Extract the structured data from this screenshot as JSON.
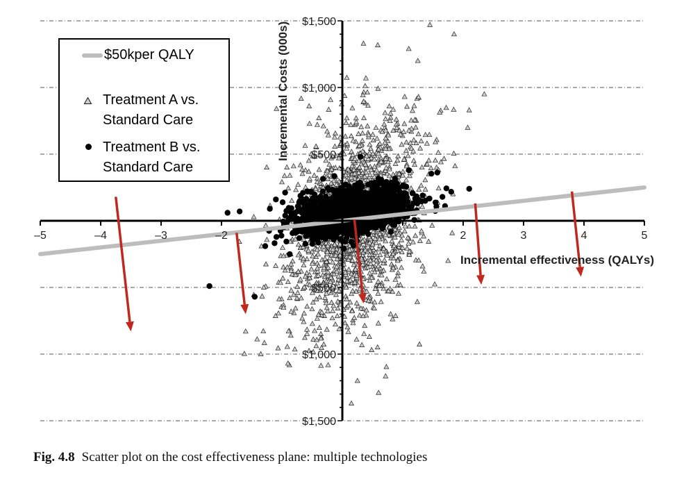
{
  "caption": {
    "label": "Fig. 4.8",
    "text": "Scatter plot on the cost effectiveness plane: multiple technologies"
  },
  "legend": {
    "threshold": "$50kper QALY",
    "series_a_line1": "Treatment A vs.",
    "series_a_line2": "Standard Care",
    "series_b_line1": "Treatment B vs.",
    "series_b_line2": "Standard Care"
  },
  "colors": {
    "threshold_line": "#bdbdbd",
    "arrows": "#c0281e",
    "triangles_fill": "#cfcfcf",
    "dots": "#000000"
  },
  "chart_data": {
    "type": "scatter",
    "title": "",
    "xlabel": "Incremental effectiveness (QALYs)",
    "ylabel": "Incremental Costs (000s)",
    "xlim": [
      -5,
      5
    ],
    "ylim": [
      -1500,
      1500
    ],
    "x_ticks": [
      -5,
      -4,
      -3,
      -2,
      2,
      3,
      4,
      5
    ],
    "x_tick_labels": [
      "–5",
      "–4",
      "–3",
      "–2",
      "2",
      "3",
      "4",
      "5"
    ],
    "y_ticks": [
      1500,
      1000,
      500,
      -500,
      -1000,
      -1500
    ],
    "y_tick_labels": [
      "$1,500",
      "$1,000",
      "$500",
      "$500",
      "$1,000",
      "$1,500"
    ],
    "grid": "horizontal dash-dot lines at each y tick",
    "legend_position": "top-left",
    "threshold_line": {
      "name": "$50kper QALY",
      "slope": 50,
      "x_range": [
        -5,
        5
      ]
    },
    "series": [
      {
        "name": "Treatment A vs. Standard Care",
        "marker": "triangle",
        "cloud": {
          "center": [
            0.2,
            0.0
          ],
          "sd": [
            0.55,
            380
          ],
          "rho": 0.35,
          "count": 1700
        },
        "outliers": [
          [
            0.35,
            1330
          ],
          [
            1.1,
            1290
          ],
          [
            1.45,
            1470
          ],
          [
            1.85,
            1400
          ],
          [
            1.25,
            1200
          ],
          [
            2.35,
            950
          ],
          [
            2.1,
            830
          ],
          [
            -0.55,
            860
          ],
          [
            -1.3,
            -500
          ],
          [
            -1.6,
            -830
          ],
          [
            -1.35,
            -1000
          ],
          [
            -0.9,
            -1070
          ],
          [
            0.15,
            -1370
          ],
          [
            0.6,
            -1290
          ],
          [
            0.25,
            -1200
          ],
          [
            0.8,
            -700
          ],
          [
            1.35,
            -380
          ],
          [
            1.75,
            -300
          ],
          [
            -0.95,
            560
          ],
          [
            -1.0,
            290
          ]
        ]
      },
      {
        "name": "Treatment B vs. Standard Care",
        "marker": "circle",
        "cloud": {
          "center": [
            0.15,
            80
          ],
          "sd": [
            0.45,
            90
          ],
          "rho": 0.4,
          "count": 1700
        },
        "outliers": [
          [
            -2.2,
            -490
          ],
          [
            -1.45,
            -570
          ],
          [
            -1.9,
            60
          ],
          [
            -1.7,
            70
          ],
          [
            1.7,
            110
          ],
          [
            2.1,
            240
          ],
          [
            -1.1,
            160
          ],
          [
            -0.9,
            0
          ],
          [
            0.3,
            480
          ],
          [
            1.1,
            380
          ],
          [
            -1.2,
            90
          ]
        ]
      }
    ],
    "annotations": [
      {
        "type": "arrow",
        "from": [
          -3.75,
          180
        ],
        "to": [
          -3.5,
          -830
        ]
      },
      {
        "type": "arrow",
        "from": [
          -1.75,
          -90
        ],
        "to": [
          -1.6,
          -700
        ]
      },
      {
        "type": "arrow",
        "from": [
          0.2,
          10
        ],
        "to": [
          0.35,
          -620
        ]
      },
      {
        "type": "arrow",
        "from": [
          2.2,
          130
        ],
        "to": [
          2.3,
          -480
        ]
      },
      {
        "type": "arrow",
        "from": [
          3.8,
          220
        ],
        "to": [
          3.95,
          -420
        ]
      }
    ]
  }
}
